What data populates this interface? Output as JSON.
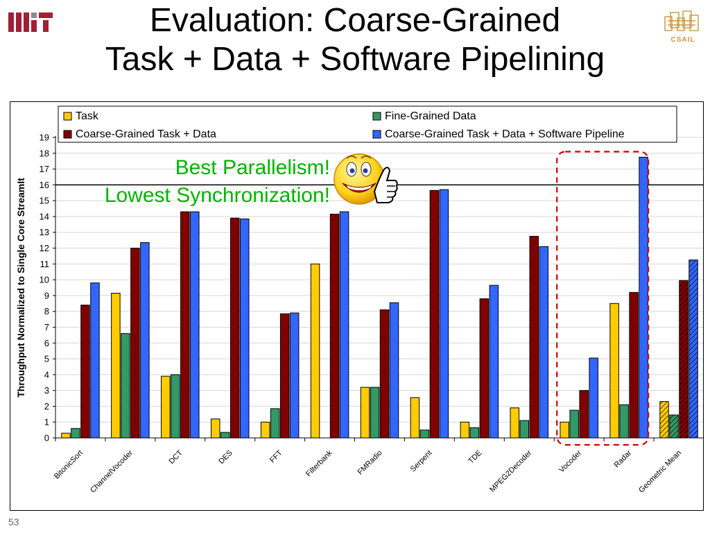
{
  "title": {
    "line1": "Evaluation: Coarse-Grained",
    "line2": "Task + Data + Software Pipelining"
  },
  "logos": {
    "left": "MIT",
    "right": "CSAIL"
  },
  "slide_number": "53",
  "callout": {
    "line1": "Best Parallelism!",
    "line2": "Lowest Synchronization!"
  },
  "icons": {
    "smiley": "thumbs-up-smiley-icon"
  },
  "chart_data": {
    "type": "bar",
    "ylabel": "Throughput Normalized to Single Core StreamIt",
    "xlabel": "",
    "ylim": [
      0,
      19
    ],
    "yticks": [
      "0",
      "1",
      "2",
      "3",
      "4",
      "5",
      "6",
      "7",
      "8",
      "9",
      "10",
      "11",
      "12",
      "13",
      "14",
      "15",
      "16",
      "17",
      "18",
      "19"
    ],
    "grid": "horizontal",
    "legend_position": "top",
    "reference_line": 16,
    "categories": [
      "BitonicSort",
      "ChannelVocoder",
      "DCT",
      "DES",
      "FFT",
      "Filterbank",
      "FMRadio",
      "Serpent",
      "TDE",
      "MPEG2Decoder",
      "Vocoder",
      "Radar",
      "Geometric Mean"
    ],
    "series": [
      {
        "name": "Task",
        "color": "#ffcc00",
        "values": [
          0.3,
          9.15,
          3.9,
          1.2,
          1.0,
          11.0,
          3.2,
          2.55,
          1.0,
          1.9,
          1.0,
          8.5,
          2.3
        ]
      },
      {
        "name": "Fine-Grained Data",
        "color": "#339966",
        "values": [
          0.6,
          6.6,
          4.0,
          0.35,
          1.85,
          0.0,
          3.2,
          0.5,
          0.65,
          1.1,
          1.75,
          2.1,
          1.45
        ]
      },
      {
        "name": "Coarse-Grained Task + Data",
        "color": "#800000",
        "values": [
          8.4,
          12.0,
          14.3,
          13.9,
          7.85,
          14.15,
          8.1,
          15.65,
          8.8,
          12.75,
          3.0,
          9.2,
          9.95
        ]
      },
      {
        "name": "Coarse-Grained Task + Data + Software Pipeline",
        "color": "#3366ff",
        "values": [
          9.8,
          12.35,
          14.3,
          13.85,
          7.9,
          14.3,
          8.55,
          15.7,
          9.65,
          12.1,
          5.05,
          17.75,
          11.25
        ]
      }
    ],
    "highlighted_categories": [
      "Vocoder",
      "Radar"
    ],
    "hatched_categories": [
      "Geometric Mean"
    ]
  }
}
